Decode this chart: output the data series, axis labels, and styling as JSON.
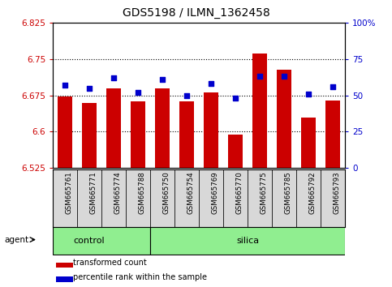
{
  "title": "GDS5198 / ILMN_1362458",
  "samples": [
    "GSM665761",
    "GSM665771",
    "GSM665774",
    "GSM665788",
    "GSM665750",
    "GSM665754",
    "GSM665769",
    "GSM665770",
    "GSM665775",
    "GSM665785",
    "GSM665792",
    "GSM665793"
  ],
  "bar_values": [
    6.672,
    6.66,
    6.69,
    6.663,
    6.69,
    6.662,
    6.682,
    6.594,
    6.762,
    6.728,
    6.63,
    6.665
  ],
  "dot_values": [
    57,
    55,
    62,
    52,
    61,
    50,
    58,
    48,
    63,
    63,
    51,
    56
  ],
  "y_min": 6.525,
  "y_max": 6.825,
  "y_ticks": [
    6.525,
    6.6,
    6.675,
    6.75,
    6.825
  ],
  "y_tick_labels": [
    "6.525",
    "6.6",
    "6.675",
    "6.75",
    "6.825"
  ],
  "y2_ticks": [
    0,
    25,
    50,
    75,
    100
  ],
  "y2_tick_labels": [
    "0",
    "25",
    "50",
    "75",
    "100%"
  ],
  "bar_color": "#cc0000",
  "dot_color": "#0000cc",
  "group_color": "#90ee90",
  "left_tick_color": "#cc0000",
  "right_tick_color": "#0000cc",
  "title_fontsize": 10,
  "bar_bottom": 6.525,
  "n_control": 4,
  "grid_lines": [
    6.6,
    6.675,
    6.75
  ],
  "legend_items": [
    "transformed count",
    "percentile rank within the sample"
  ]
}
